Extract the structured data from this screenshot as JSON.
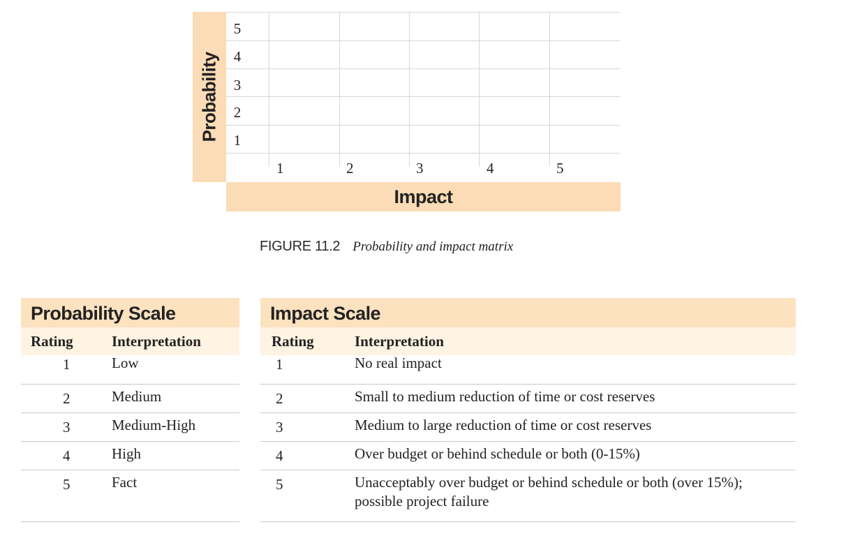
{
  "matrix": {
    "y_axis_label": "Probability",
    "x_axis_label": "Impact",
    "y_ticks": [
      "5",
      "4",
      "3",
      "2",
      "1"
    ],
    "x_ticks": [
      "1",
      "2",
      "3",
      "4",
      "5"
    ]
  },
  "caption": {
    "figure_number": "FIGURE 11.2",
    "title": "Probability and impact matrix"
  },
  "probability_scale": {
    "title": "Probability Scale",
    "col_rating": "Rating",
    "col_interpretation": "Interpretation",
    "rows": [
      {
        "rating": "1",
        "interpretation": "Low"
      },
      {
        "rating": "2",
        "interpretation": "Medium"
      },
      {
        "rating": "3",
        "interpretation": "Medium-High"
      },
      {
        "rating": "4",
        "interpretation": "High"
      },
      {
        "rating": "5",
        "interpretation": "Fact"
      }
    ]
  },
  "impact_scale": {
    "title": "Impact Scale",
    "col_rating": "Rating",
    "col_interpretation": "Interpretation",
    "rows": [
      {
        "rating": "1",
        "interpretation": "No real impact"
      },
      {
        "rating": "2",
        "interpretation": "Small to medium reduction of time or cost reserves"
      },
      {
        "rating": "3",
        "interpretation": "Medium to large reduction of time or cost reserves"
      },
      {
        "rating": "4",
        "interpretation": "Over budget or behind schedule or both (0-15%)"
      },
      {
        "rating": "5",
        "interpretation": "Unacceptably over budget or behind schedule or both (over 15%); possible project failure"
      }
    ]
  },
  "colors": {
    "axis_band": "#fbdcb6",
    "table_header": "#fde2c0",
    "table_colhead": "#fff3e3",
    "grid_line": "#d6d6d6"
  }
}
